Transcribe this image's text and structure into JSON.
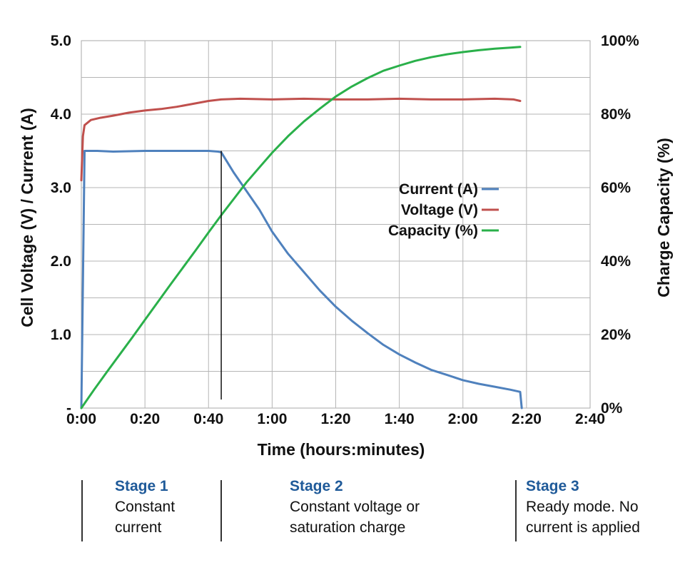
{
  "chart_data": {
    "type": "line",
    "x_unit": "minutes",
    "xlim": [
      0,
      160
    ],
    "x_ticks": [
      {
        "value": 0,
        "label": "0:00"
      },
      {
        "value": 20,
        "label": "0:20"
      },
      {
        "value": 40,
        "label": "0:40"
      },
      {
        "value": 60,
        "label": "1:00"
      },
      {
        "value": 80,
        "label": "1:20"
      },
      {
        "value": 100,
        "label": "1:40"
      },
      {
        "value": 120,
        "label": "2:00"
      },
      {
        "value": 140,
        "label": "2:20"
      },
      {
        "value": 160,
        "label": "2:40"
      }
    ],
    "xlabel": "Time (hours:minutes)",
    "ylabel_left": "Cell Voltage (V) / Current (A)",
    "ylim_left": [
      0,
      5
    ],
    "y_ticks_left": [
      {
        "value": 0,
        "label": "-"
      },
      {
        "value": 1,
        "label": "1.0"
      },
      {
        "value": 2,
        "label": "2.0"
      },
      {
        "value": 3,
        "label": "3.0"
      },
      {
        "value": 4,
        "label": "4.0"
      },
      {
        "value": 5,
        "label": "5.0"
      }
    ],
    "ylabel_right": "Charge Capacity (%)",
    "ylim_right": [
      0,
      100
    ],
    "y_ticks_right": [
      {
        "value": 0,
        "label": "0%"
      },
      {
        "value": 20,
        "label": "20%"
      },
      {
        "value": 40,
        "label": "40%"
      },
      {
        "value": 60,
        "label": "60%"
      },
      {
        "value": 80,
        "label": "80%"
      },
      {
        "value": 100,
        "label": "100%"
      }
    ],
    "grid": true,
    "legend_position": "center-right",
    "stage_marker_x": 44,
    "series": [
      {
        "name": "Current (A)",
        "axis": "left",
        "color": "#4f81bd",
        "points": [
          [
            0,
            0
          ],
          [
            1,
            3.5
          ],
          [
            5,
            3.5
          ],
          [
            10,
            3.49
          ],
          [
            20,
            3.5
          ],
          [
            30,
            3.5
          ],
          [
            40,
            3.5
          ],
          [
            43,
            3.49
          ],
          [
            44,
            3.48
          ],
          [
            48,
            3.2
          ],
          [
            52,
            2.95
          ],
          [
            56,
            2.7
          ],
          [
            60,
            2.4
          ],
          [
            65,
            2.1
          ],
          [
            70,
            1.85
          ],
          [
            75,
            1.6
          ],
          [
            80,
            1.38
          ],
          [
            85,
            1.19
          ],
          [
            90,
            1.02
          ],
          [
            95,
            0.86
          ],
          [
            100,
            0.73
          ],
          [
            105,
            0.62
          ],
          [
            110,
            0.52
          ],
          [
            115,
            0.45
          ],
          [
            120,
            0.38
          ],
          [
            125,
            0.33
          ],
          [
            130,
            0.29
          ],
          [
            135,
            0.25
          ],
          [
            138,
            0.22
          ],
          [
            138.5,
            0
          ]
        ]
      },
      {
        "name": "Voltage (V)",
        "axis": "left",
        "color": "#c0504d",
        "points": [
          [
            0,
            3.1
          ],
          [
            0.5,
            3.7
          ],
          [
            1,
            3.85
          ],
          [
            3,
            3.92
          ],
          [
            6,
            3.95
          ],
          [
            10,
            3.98
          ],
          [
            15,
            4.02
          ],
          [
            20,
            4.05
          ],
          [
            25,
            4.07
          ],
          [
            30,
            4.1
          ],
          [
            35,
            4.14
          ],
          [
            40,
            4.18
          ],
          [
            44,
            4.2
          ],
          [
            50,
            4.21
          ],
          [
            60,
            4.2
          ],
          [
            70,
            4.21
          ],
          [
            80,
            4.2
          ],
          [
            90,
            4.2
          ],
          [
            100,
            4.21
          ],
          [
            110,
            4.2
          ],
          [
            120,
            4.2
          ],
          [
            130,
            4.21
          ],
          [
            136,
            4.2
          ],
          [
            138,
            4.18
          ]
        ]
      },
      {
        "name": "Capacity (%)",
        "axis": "right",
        "color": "#2ab04a",
        "points": [
          [
            0,
            0
          ],
          [
            4,
            5
          ],
          [
            8,
            9.8
          ],
          [
            12,
            14.5
          ],
          [
            16,
            19.2
          ],
          [
            20,
            24
          ],
          [
            24,
            28.8
          ],
          [
            28,
            33.6
          ],
          [
            32,
            38.3
          ],
          [
            36,
            43
          ],
          [
            40,
            47.8
          ],
          [
            44,
            52.5
          ],
          [
            48,
            57
          ],
          [
            52,
            61.5
          ],
          [
            56,
            65.5
          ],
          [
            60,
            69.5
          ],
          [
            65,
            74
          ],
          [
            70,
            78
          ],
          [
            75,
            81.5
          ],
          [
            80,
            84.8
          ],
          [
            85,
            87.5
          ],
          [
            90,
            89.8
          ],
          [
            95,
            91.8
          ],
          [
            100,
            93.2
          ],
          [
            105,
            94.5
          ],
          [
            110,
            95.5
          ],
          [
            115,
            96.3
          ],
          [
            120,
            96.9
          ],
          [
            125,
            97.4
          ],
          [
            130,
            97.8
          ],
          [
            135,
            98.1
          ],
          [
            138,
            98.3
          ]
        ]
      }
    ]
  },
  "stages": [
    {
      "title": "Stage 1",
      "description_lines": [
        "Constant",
        "current"
      ]
    },
    {
      "title": "Stage 2",
      "description_lines": [
        "Constant voltage or",
        "saturation charge"
      ]
    },
    {
      "title": "Stage 3",
      "description_lines": [
        "Ready mode. No",
        "current is applied"
      ]
    }
  ]
}
